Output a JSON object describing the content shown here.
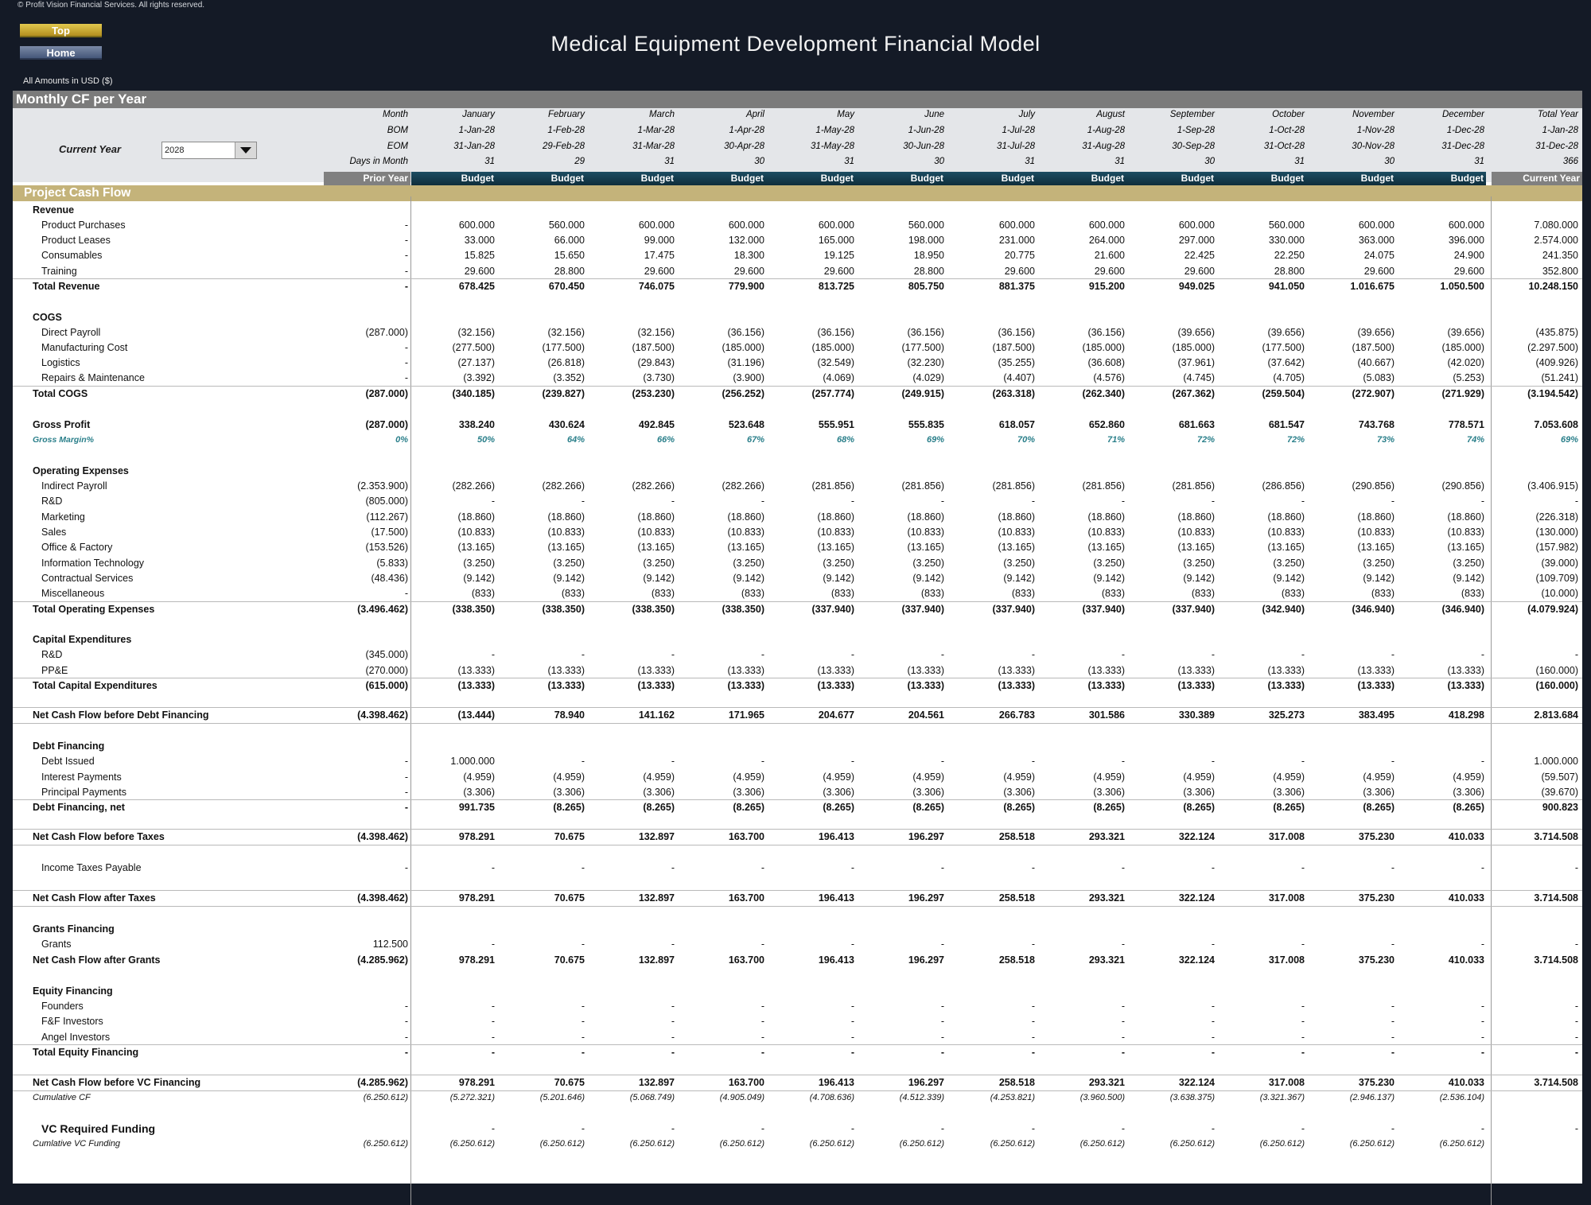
{
  "copyright": "© Profit Vision Financial Services. All rights reserved.",
  "nav": {
    "top_label": "Top",
    "home_label": "Home"
  },
  "title": "Medical Equipment Development Financial Model",
  "amounts_note": "All Amounts in  USD ($)",
  "section_title": "Monthly CF per Year",
  "current_year": {
    "label": "Current Year",
    "value": "2028"
  },
  "header_rows": [
    {
      "label": "Month",
      "values": [
        "January",
        "February",
        "March",
        "April",
        "May",
        "June",
        "July",
        "August",
        "September",
        "October",
        "November",
        "December",
        "Total Year"
      ]
    },
    {
      "label": "BOM",
      "values": [
        "1-Jan-28",
        "1-Feb-28",
        "1-Mar-28",
        "1-Apr-28",
        "1-May-28",
        "1-Jun-28",
        "1-Jul-28",
        "1-Aug-28",
        "1-Sep-28",
        "1-Oct-28",
        "1-Nov-28",
        "1-Dec-28",
        "1-Jan-28"
      ]
    },
    {
      "label": "EOM",
      "values": [
        "31-Jan-28",
        "29-Feb-28",
        "31-Mar-28",
        "30-Apr-28",
        "31-May-28",
        "30-Jun-28",
        "31-Jul-28",
        "31-Aug-28",
        "30-Sep-28",
        "31-Oct-28",
        "30-Nov-28",
        "31-Dec-28",
        "31-Dec-28"
      ]
    },
    {
      "label": "Days in Month",
      "values": [
        "31",
        "29",
        "31",
        "30",
        "31",
        "30",
        "31",
        "31",
        "30",
        "31",
        "30",
        "31",
        "366"
      ]
    }
  ],
  "column_labels": {
    "prior": "Prior Year",
    "months": [
      "Budget",
      "Budget",
      "Budget",
      "Budget",
      "Budget",
      "Budget",
      "Budget",
      "Budget",
      "Budget",
      "Budget",
      "Budget",
      "Budget"
    ],
    "total": "Current Year"
  },
  "band_title": "Project Cash Flow",
  "colors": {
    "background": "#141a26",
    "section_band": "#7b7b7b",
    "header_area": "#e4e6e9",
    "prior_label_bg": "#808080",
    "budget_label_bg": "#1c4d62",
    "band": "#c4b37a",
    "margin_text": "#2a7f8a"
  },
  "rows": [
    {
      "label": "Revenue",
      "style": "group",
      "values": []
    },
    {
      "label": "Product Purchases",
      "style": "item",
      "values": [
        "-",
        "600.000",
        "560.000",
        "600.000",
        "600.000",
        "600.000",
        "560.000",
        "600.000",
        "600.000",
        "600.000",
        "560.000",
        "600.000",
        "600.000",
        "7.080.000"
      ]
    },
    {
      "label": "Product Leases",
      "style": "item",
      "values": [
        "-",
        "33.000",
        "66.000",
        "99.000",
        "132.000",
        "165.000",
        "198.000",
        "231.000",
        "264.000",
        "297.000",
        "330.000",
        "363.000",
        "396.000",
        "2.574.000"
      ]
    },
    {
      "label": "Consumables",
      "style": "item",
      "values": [
        "-",
        "15.825",
        "15.650",
        "17.475",
        "18.300",
        "19.125",
        "18.950",
        "20.775",
        "21.600",
        "22.425",
        "22.250",
        "24.075",
        "24.900",
        "241.350"
      ]
    },
    {
      "label": "Training",
      "style": "item",
      "values": [
        "-",
        "29.600",
        "28.800",
        "29.600",
        "29.600",
        "29.600",
        "28.800",
        "29.600",
        "29.600",
        "29.600",
        "28.800",
        "29.600",
        "29.600",
        "352.800"
      ]
    },
    {
      "label": "Total Revenue",
      "style": "total",
      "values": [
        "-",
        "678.425",
        "670.450",
        "746.075",
        "779.900",
        "813.725",
        "805.750",
        "881.375",
        "915.200",
        "949.025",
        "941.050",
        "1.016.675",
        "1.050.500",
        "10.248.150"
      ]
    },
    {
      "label": "COGS",
      "style": "group",
      "values": []
    },
    {
      "label": "Direct Payroll",
      "style": "item",
      "values": [
        "(287.000)",
        "(32.156)",
        "(32.156)",
        "(32.156)",
        "(36.156)",
        "(36.156)",
        "(36.156)",
        "(36.156)",
        "(36.156)",
        "(39.656)",
        "(39.656)",
        "(39.656)",
        "(39.656)",
        "(435.875)"
      ]
    },
    {
      "label": "Manufacturing Cost",
      "style": "item",
      "values": [
        "-",
        "(277.500)",
        "(177.500)",
        "(187.500)",
        "(185.000)",
        "(185.000)",
        "(177.500)",
        "(187.500)",
        "(185.000)",
        "(185.000)",
        "(177.500)",
        "(187.500)",
        "(185.000)",
        "(2.297.500)"
      ]
    },
    {
      "label": "Logistics",
      "style": "item",
      "values": [
        "-",
        "(27.137)",
        "(26.818)",
        "(29.843)",
        "(31.196)",
        "(32.549)",
        "(32.230)",
        "(35.255)",
        "(36.608)",
        "(37.961)",
        "(37.642)",
        "(40.667)",
        "(42.020)",
        "(409.926)"
      ]
    },
    {
      "label": "Repairs & Maintenance",
      "style": "item",
      "values": [
        "-",
        "(3.392)",
        "(3.352)",
        "(3.730)",
        "(3.900)",
        "(4.069)",
        "(4.029)",
        "(4.407)",
        "(4.576)",
        "(4.745)",
        "(4.705)",
        "(5.083)",
        "(5.253)",
        "(51.241)"
      ]
    },
    {
      "label": "Total COGS",
      "style": "total",
      "values": [
        "(287.000)",
        "(340.185)",
        "(239.827)",
        "(253.230)",
        "(256.252)",
        "(257.774)",
        "(249.915)",
        "(263.318)",
        "(262.340)",
        "(267.362)",
        "(259.504)",
        "(272.907)",
        "(271.929)",
        "(3.194.542)"
      ]
    },
    {
      "label": "Gross Profit",
      "style": "bold",
      "values": [
        "(287.000)",
        "338.240",
        "430.624",
        "492.845",
        "523.648",
        "555.951",
        "555.835",
        "618.057",
        "652.860",
        "681.663",
        "681.547",
        "743.768",
        "778.571",
        "7.053.608"
      ]
    },
    {
      "label": "Gross Margin%",
      "style": "margin",
      "values": [
        "0%",
        "50%",
        "64%",
        "66%",
        "67%",
        "68%",
        "69%",
        "70%",
        "71%",
        "72%",
        "72%",
        "73%",
        "74%",
        "69%"
      ]
    },
    {
      "label": "Operating Expenses",
      "style": "group",
      "values": []
    },
    {
      "label": "Indirect Payroll",
      "style": "item",
      "values": [
        "(2.353.900)",
        "(282.266)",
        "(282.266)",
        "(282.266)",
        "(282.266)",
        "(281.856)",
        "(281.856)",
        "(281.856)",
        "(281.856)",
        "(281.856)",
        "(286.856)",
        "(290.856)",
        "(290.856)",
        "(3.406.915)"
      ]
    },
    {
      "label": "R&D",
      "style": "item",
      "values": [
        "(805.000)",
        "-",
        "-",
        "-",
        "-",
        "-",
        "-",
        "-",
        "-",
        "-",
        "-",
        "-",
        "-",
        "-"
      ]
    },
    {
      "label": "Marketing",
      "style": "item",
      "values": [
        "(112.267)",
        "(18.860)",
        "(18.860)",
        "(18.860)",
        "(18.860)",
        "(18.860)",
        "(18.860)",
        "(18.860)",
        "(18.860)",
        "(18.860)",
        "(18.860)",
        "(18.860)",
        "(18.860)",
        "(226.318)"
      ]
    },
    {
      "label": "Sales",
      "style": "item",
      "values": [
        "(17.500)",
        "(10.833)",
        "(10.833)",
        "(10.833)",
        "(10.833)",
        "(10.833)",
        "(10.833)",
        "(10.833)",
        "(10.833)",
        "(10.833)",
        "(10.833)",
        "(10.833)",
        "(10.833)",
        "(130.000)"
      ]
    },
    {
      "label": "Office & Factory",
      "style": "item",
      "values": [
        "(153.526)",
        "(13.165)",
        "(13.165)",
        "(13.165)",
        "(13.165)",
        "(13.165)",
        "(13.165)",
        "(13.165)",
        "(13.165)",
        "(13.165)",
        "(13.165)",
        "(13.165)",
        "(13.165)",
        "(157.982)"
      ]
    },
    {
      "label": "Information Technology",
      "style": "item",
      "values": [
        "(5.833)",
        "(3.250)",
        "(3.250)",
        "(3.250)",
        "(3.250)",
        "(3.250)",
        "(3.250)",
        "(3.250)",
        "(3.250)",
        "(3.250)",
        "(3.250)",
        "(3.250)",
        "(3.250)",
        "(39.000)"
      ]
    },
    {
      "label": "Contractual Services",
      "style": "item",
      "values": [
        "(48.436)",
        "(9.142)",
        "(9.142)",
        "(9.142)",
        "(9.142)",
        "(9.142)",
        "(9.142)",
        "(9.142)",
        "(9.142)",
        "(9.142)",
        "(9.142)",
        "(9.142)",
        "(9.142)",
        "(109.709)"
      ]
    },
    {
      "label": "Miscellaneous",
      "style": "item",
      "values": [
        "-",
        "(833)",
        "(833)",
        "(833)",
        "(833)",
        "(833)",
        "(833)",
        "(833)",
        "(833)",
        "(833)",
        "(833)",
        "(833)",
        "(833)",
        "(10.000)"
      ]
    },
    {
      "label": "Total Operating Expenses",
      "style": "total",
      "values": [
        "(3.496.462)",
        "(338.350)",
        "(338.350)",
        "(338.350)",
        "(338.350)",
        "(337.940)",
        "(337.940)",
        "(337.940)",
        "(337.940)",
        "(337.940)",
        "(342.940)",
        "(346.940)",
        "(346.940)",
        "(4.079.924)"
      ]
    },
    {
      "label": "Capital Expenditures",
      "style": "group",
      "values": []
    },
    {
      "label": "R&D",
      "style": "item",
      "values": [
        "(345.000)",
        "-",
        "-",
        "-",
        "-",
        "-",
        "-",
        "-",
        "-",
        "-",
        "-",
        "-",
        "-",
        "-"
      ]
    },
    {
      "label": "PP&E",
      "style": "item",
      "values": [
        "(270.000)",
        "(13.333)",
        "(13.333)",
        "(13.333)",
        "(13.333)",
        "(13.333)",
        "(13.333)",
        "(13.333)",
        "(13.333)",
        "(13.333)",
        "(13.333)",
        "(13.333)",
        "(13.333)",
        "(160.000)"
      ]
    },
    {
      "label": "Total Capital Expenditures",
      "style": "total",
      "values": [
        "(615.000)",
        "(13.333)",
        "(13.333)",
        "(13.333)",
        "(13.333)",
        "(13.333)",
        "(13.333)",
        "(13.333)",
        "(13.333)",
        "(13.333)",
        "(13.333)",
        "(13.333)",
        "(13.333)",
        "(160.000)"
      ]
    },
    {
      "label": "Net Cash Flow before Debt Financing",
      "style": "net",
      "values": [
        "(4.398.462)",
        "(13.444)",
        "78.940",
        "141.162",
        "171.965",
        "204.677",
        "204.561",
        "266.783",
        "301.586",
        "330.389",
        "325.273",
        "383.495",
        "418.298",
        "2.813.684"
      ]
    },
    {
      "label": "Debt Financing",
      "style": "group",
      "values": []
    },
    {
      "label": "Debt Issued",
      "style": "item",
      "values": [
        "-",
        "1.000.000",
        "-",
        "-",
        "-",
        "-",
        "-",
        "-",
        "-",
        "-",
        "-",
        "-",
        "-",
        "1.000.000"
      ]
    },
    {
      "label": "Interest Payments",
      "style": "item",
      "values": [
        "-",
        "(4.959)",
        "(4.959)",
        "(4.959)",
        "(4.959)",
        "(4.959)",
        "(4.959)",
        "(4.959)",
        "(4.959)",
        "(4.959)",
        "(4.959)",
        "(4.959)",
        "(4.959)",
        "(59.507)"
      ]
    },
    {
      "label": "Principal Payments",
      "style": "item",
      "values": [
        "-",
        "(3.306)",
        "(3.306)",
        "(3.306)",
        "(3.306)",
        "(3.306)",
        "(3.306)",
        "(3.306)",
        "(3.306)",
        "(3.306)",
        "(3.306)",
        "(3.306)",
        "(3.306)",
        "(39.670)"
      ]
    },
    {
      "label": "Debt Financing, net",
      "style": "total",
      "values": [
        "-",
        "991.735",
        "(8.265)",
        "(8.265)",
        "(8.265)",
        "(8.265)",
        "(8.265)",
        "(8.265)",
        "(8.265)",
        "(8.265)",
        "(8.265)",
        "(8.265)",
        "(8.265)",
        "900.823"
      ]
    },
    {
      "label": "Net Cash Flow before Taxes",
      "style": "net",
      "values": [
        "(4.398.462)",
        "978.291",
        "70.675",
        "132.897",
        "163.700",
        "196.413",
        "196.297",
        "258.518",
        "293.321",
        "322.124",
        "317.008",
        "375.230",
        "410.033",
        "3.714.508"
      ]
    },
    {
      "label": "Income Taxes Payable",
      "style": "item",
      "values": [
        "-",
        "-",
        "-",
        "-",
        "-",
        "-",
        "-",
        "-",
        "-",
        "-",
        "-",
        "-",
        "-",
        "-"
      ]
    },
    {
      "label": "Net Cash Flow after Taxes",
      "style": "net",
      "values": [
        "(4.398.462)",
        "978.291",
        "70.675",
        "132.897",
        "163.700",
        "196.413",
        "196.297",
        "258.518",
        "293.321",
        "322.124",
        "317.008",
        "375.230",
        "410.033",
        "3.714.508"
      ]
    },
    {
      "label": "Grants Financing",
      "style": "group",
      "values": []
    },
    {
      "label": "Grants",
      "style": "item",
      "values": [
        "112.500",
        "-",
        "-",
        "-",
        "-",
        "-",
        "-",
        "-",
        "-",
        "-",
        "-",
        "-",
        "-",
        "-"
      ]
    },
    {
      "label": "Net Cash Flow after Grants",
      "style": "bold",
      "values": [
        "(4.285.962)",
        "978.291",
        "70.675",
        "132.897",
        "163.700",
        "196.413",
        "196.297",
        "258.518",
        "293.321",
        "322.124",
        "317.008",
        "375.230",
        "410.033",
        "3.714.508"
      ]
    },
    {
      "label": "Equity Financing",
      "style": "group",
      "values": []
    },
    {
      "label": "Founders",
      "style": "item",
      "values": [
        "-",
        "-",
        "-",
        "-",
        "-",
        "-",
        "-",
        "-",
        "-",
        "-",
        "-",
        "-",
        "-",
        "-"
      ]
    },
    {
      "label": "F&F Investors",
      "style": "item",
      "values": [
        "-",
        "-",
        "-",
        "-",
        "-",
        "-",
        "-",
        "-",
        "-",
        "-",
        "-",
        "-",
        "-",
        "-"
      ]
    },
    {
      "label": "Angel Investors",
      "style": "item",
      "values": [
        "-",
        "-",
        "-",
        "-",
        "-",
        "-",
        "-",
        "-",
        "-",
        "-",
        "-",
        "-",
        "-",
        "-"
      ]
    },
    {
      "label": "Total Equity Financing",
      "style": "total",
      "values": [
        "-",
        "-",
        "-",
        "-",
        "-",
        "-",
        "-",
        "-",
        "-",
        "-",
        "-",
        "-",
        "-",
        "-"
      ]
    },
    {
      "label": "Net Cash Flow before VC Financing",
      "style": "net",
      "values": [
        "(4.285.962)",
        "978.291",
        "70.675",
        "132.897",
        "163.700",
        "196.413",
        "196.297",
        "258.518",
        "293.321",
        "322.124",
        "317.008",
        "375.230",
        "410.033",
        "3.714.508"
      ]
    },
    {
      "label": "Cumulative CF",
      "style": "italic",
      "values": [
        "(6.250.612)",
        "(5.272.321)",
        "(5.201.646)",
        "(5.068.749)",
        "(4.905.049)",
        "(4.708.636)",
        "(4.512.339)",
        "(4.253.821)",
        "(3.960.500)",
        "(3.638.375)",
        "(3.321.367)",
        "(2.946.137)",
        "(2.536.104)",
        ""
      ]
    },
    {
      "label": "VC Required Funding",
      "style": "vc",
      "values": [
        "",
        "-",
        "-",
        "-",
        "-",
        "-",
        "-",
        "-",
        "-",
        "-",
        "-",
        "-",
        "-",
        "-"
      ]
    },
    {
      "label": "Cumlative VC Funding",
      "style": "italic",
      "values": [
        "(6.250.612)",
        "(6.250.612)",
        "(6.250.612)",
        "(6.250.612)",
        "(6.250.612)",
        "(6.250.612)",
        "(6.250.612)",
        "(6.250.612)",
        "(6.250.612)",
        "(6.250.612)",
        "(6.250.612)",
        "(6.250.612)",
        "(6.250.612)",
        ""
      ]
    }
  ]
}
